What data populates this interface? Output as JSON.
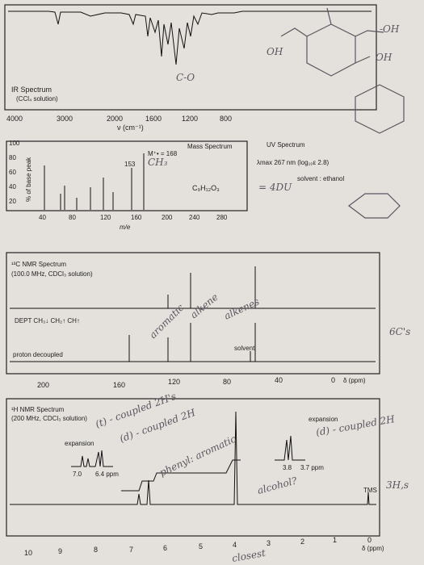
{
  "ir": {
    "title": "IR Spectrum",
    "solvent": "(CCl₄ solution)",
    "x_ticks": [
      4000,
      3000,
      2000,
      1600,
      1200,
      800
    ],
    "x_label": "ν (cm⁻¹)"
  },
  "mass": {
    "title": "Mass Spectrum",
    "molecular_ion": "M⁺• = 168",
    "peak_label": 153,
    "y_label": "% of base peak",
    "y_ticks": [
      100,
      80,
      60,
      40,
      20
    ],
    "x_ticks": [
      40,
      80,
      120,
      160,
      200,
      240,
      280
    ],
    "x_label": "m/e",
    "formula": "C₉H₁₂O₃"
  },
  "uv": {
    "title": "UV Spectrum",
    "lambda": "λmax 267 nm (log₁₀ε 2.8)",
    "solvent": "solvent : ethanol"
  },
  "c13": {
    "title": "¹³C NMR Spectrum",
    "conditions": "(100.0 MHz, CDCl₃ solution)",
    "dept": "DEPT  CH₃↓  CH₂↑  CH↑",
    "decoupled": "proton decoupled",
    "solvent": "solvent",
    "x_ticks": [
      200,
      160,
      120,
      80,
      40,
      0
    ],
    "x_label": "δ (ppm)"
  },
  "h1": {
    "title": "¹H NMR Spectrum",
    "conditions": "(200 MHz, CDCl₃ solution)",
    "expansion_left": "expansion",
    "exp_left_ticks": [
      "7.0",
      "6.4  ppm"
    ],
    "expansion_right": "expansion",
    "exp_right_ticks": [
      "3.8",
      "3.7  ppm"
    ],
    "tms": "TMS",
    "x_ticks": [
      10,
      9,
      8,
      7,
      6,
      5,
      4,
      3,
      2,
      1,
      0
    ],
    "x_label": "δ (ppm)"
  },
  "handwritten_notes": [
    "-OH",
    "OH",
    "OH",
    "C-O",
    "CH₃",
    "= 4DU",
    "aromatic",
    "alkene",
    "alkenes",
    "6C's",
    "(t) - coupled 2H's",
    "(d) - coupled 2H",
    "phenyl: aromatic",
    "(d) - coupled 2H",
    "alcohol?",
    "3H,s",
    "closest"
  ]
}
